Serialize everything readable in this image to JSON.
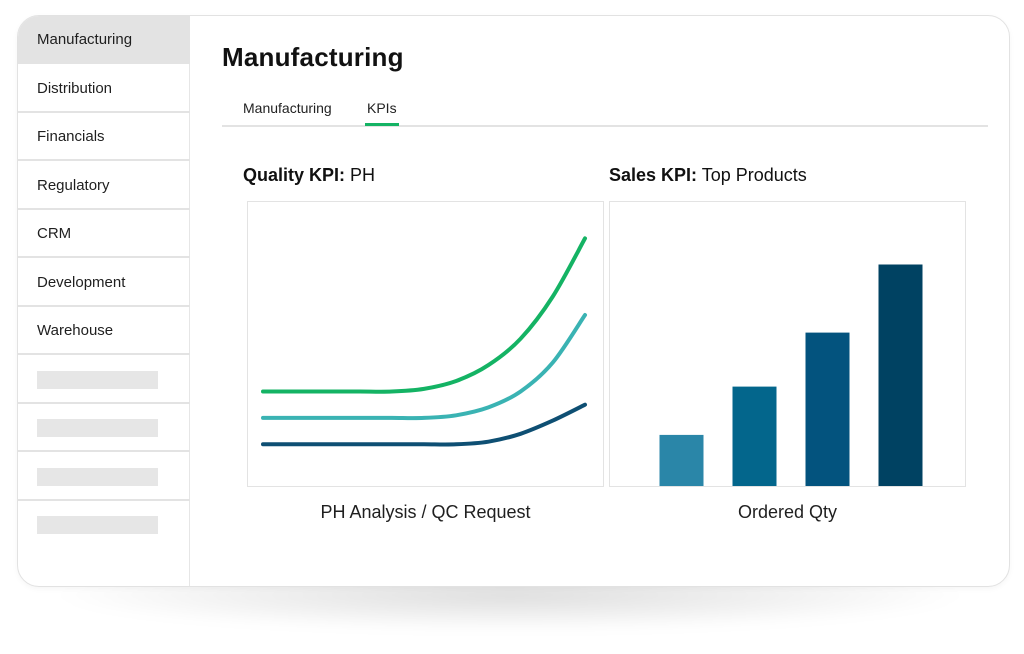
{
  "sidebar": {
    "items": [
      {
        "label": "Manufacturing",
        "active": true
      },
      {
        "label": "Distribution",
        "active": false
      },
      {
        "label": "Financials",
        "active": false
      },
      {
        "label": "Regulatory",
        "active": false
      },
      {
        "label": "CRM",
        "active": false
      },
      {
        "label": "Development",
        "active": false
      },
      {
        "label": "Warehouse",
        "active": false
      }
    ],
    "placeholder_count": 4
  },
  "main": {
    "title": "Manufacturing",
    "tabs": [
      {
        "label": "Manufacturing",
        "active": false
      },
      {
        "label": "KPIs",
        "active": true
      }
    ],
    "accent_color": "#14b364"
  },
  "quality_kpi": {
    "heading_bold": "Quality KPI:",
    "heading_rest": " PH",
    "caption": "PH Analysis / QC Request"
  },
  "sales_kpi": {
    "heading_bold": "Sales KPI:",
    "heading_rest": " Top Products",
    "caption": "Ordered Qty"
  },
  "chart_data": [
    {
      "type": "line",
      "title": "",
      "xlabel": "PH Analysis / QC Request",
      "ylabel": "",
      "x": [
        0,
        1,
        2,
        3,
        4,
        5,
        6,
        7,
        8,
        9,
        10
      ],
      "ylim": [
        0,
        10
      ],
      "grid": false,
      "series": [
        {
          "color": "#14b364",
          "values": [
            3.2,
            3.2,
            3.2,
            3.2,
            3.2,
            3.3,
            3.6,
            4.2,
            5.2,
            6.8,
            9.0
          ]
        },
        {
          "color": "#3ab3b3",
          "values": [
            2.2,
            2.2,
            2.2,
            2.2,
            2.2,
            2.2,
            2.3,
            2.6,
            3.2,
            4.3,
            6.1
          ]
        },
        {
          "color": "#0e4f73",
          "values": [
            1.2,
            1.2,
            1.2,
            1.2,
            1.2,
            1.2,
            1.2,
            1.3,
            1.6,
            2.1,
            2.7
          ]
        }
      ]
    },
    {
      "type": "bar",
      "title": "",
      "xlabel": "Ordered Qty",
      "ylabel": "",
      "categories": [
        "",
        "",
        "",
        ""
      ],
      "values": [
        18,
        35,
        54,
        78
      ],
      "ylim": [
        0,
        100
      ],
      "colors": [
        "#2a86a8",
        "#03668c",
        "#03537e",
        "#004262"
      ],
      "grid": false
    }
  ]
}
